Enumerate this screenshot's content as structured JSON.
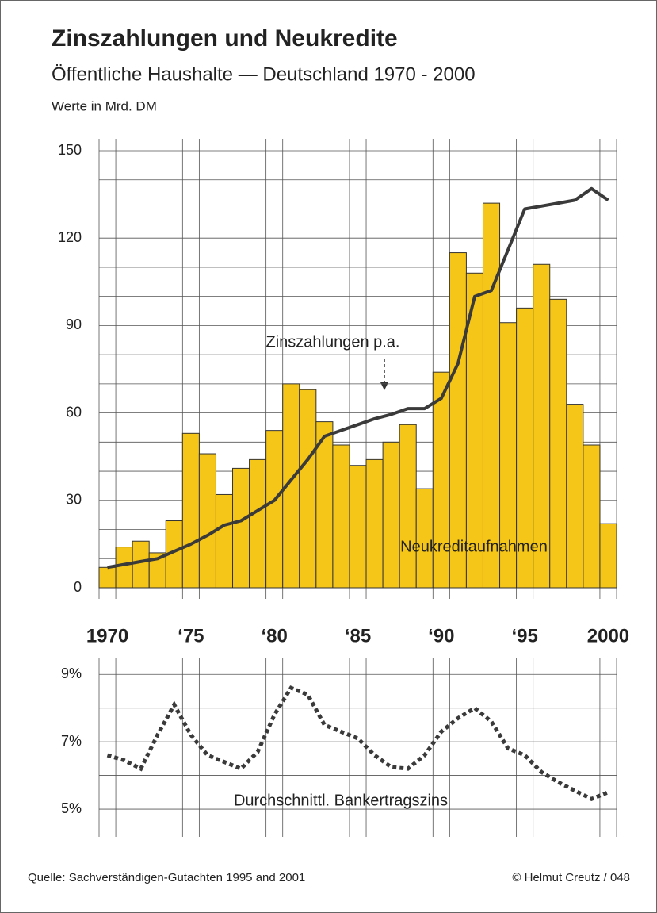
{
  "chart_data": [
    {
      "type": "bar",
      "title": "Zinszahlungen und Neukredite",
      "subtitle": "Öffentliche Haushalte — Deutschland 1970 - 2000",
      "ylabel": "Werte in Mrd. DM",
      "categories": [
        "1970",
        null,
        null,
        null,
        null,
        "‘75",
        null,
        null,
        null,
        null,
        "‘80",
        null,
        null,
        null,
        null,
        "‘85",
        null,
        null,
        null,
        null,
        "‘90",
        null,
        null,
        null,
        null,
        "‘95",
        null,
        null,
        null,
        null,
        "2000"
      ],
      "series": [
        {
          "name": "Neukreditaufnahmen",
          "kind": "bar",
          "color": "#f5c518",
          "values": [
            7,
            14,
            16,
            12,
            23,
            53,
            46,
            32,
            41,
            44,
            54,
            70,
            68,
            57,
            49,
            42,
            44,
            50,
            56,
            34,
            74,
            115,
            108,
            132,
            91,
            96,
            111,
            99,
            63,
            49,
            22
          ]
        },
        {
          "name": "Zinszahlungen p.a.",
          "kind": "line",
          "color": "#3a3a3a",
          "values": [
            7,
            8,
            9,
            10,
            12.5,
            15,
            18,
            21.5,
            23,
            26.5,
            30,
            37,
            44,
            52,
            54,
            56,
            58,
            59.5,
            61.5,
            61.5,
            65,
            77,
            100,
            102,
            116,
            130,
            131,
            132,
            133,
            137,
            133
          ]
        }
      ],
      "ylim": [
        0,
        150
      ],
      "yticks": [
        0,
        30,
        60,
        90,
        120,
        150
      ],
      "yminorticks": [
        10,
        20,
        40,
        50,
        70,
        80,
        100,
        110,
        130,
        140
      ],
      "grid": true
    },
    {
      "type": "line",
      "series": [
        {
          "name": "Durchschnittl. Bankertragszins",
          "color": "#3a3a3a",
          "style": "dotted",
          "values": [
            6.6,
            6.45,
            6.2,
            7.2,
            8.1,
            7.2,
            6.6,
            6.4,
            6.2,
            6.7,
            7.8,
            8.6,
            8.4,
            7.5,
            7.3,
            7.1,
            6.6,
            6.25,
            6.2,
            6.6,
            7.3,
            7.7,
            8.0,
            7.6,
            6.8,
            6.6,
            6.1,
            5.8,
            5.55,
            5.3,
            5.5
          ]
        }
      ],
      "ylim": [
        4.2,
        9.5
      ],
      "yticks": [
        {
          "value": 9,
          "label": "9%"
        },
        {
          "value": 7,
          "label": "7%"
        },
        {
          "value": 5,
          "label": "5%"
        }
      ],
      "yminorticks": [
        8,
        6
      ],
      "grid": true
    }
  ],
  "source": "Quelle: Sachverständigen-Gutachten 1995 and 2001",
  "credit": "©  Helmut Creutz / 048"
}
